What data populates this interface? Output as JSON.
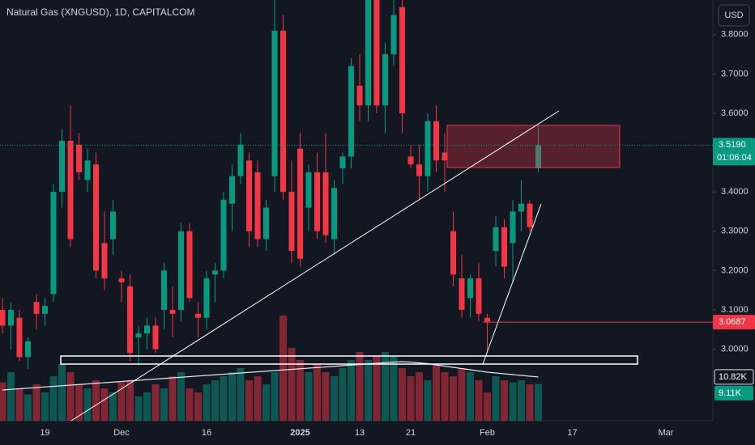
{
  "chart_data": {
    "type": "candlestick",
    "title": "Natural Gas (XNGUSD), 1D, CAPITALCOM",
    "currency": "USD",
    "categories": [
      null,
      null,
      null,
      null,
      null,
      "19",
      null,
      null,
      null,
      null,
      null,
      null,
      null,
      null,
      "Dec",
      null,
      null,
      null,
      null,
      null,
      null,
      null,
      null,
      null,
      "16",
      null,
      null,
      null,
      null,
      null,
      null,
      null,
      null,
      null,
      null,
      "2025",
      null,
      null,
      null,
      null,
      null,
      null,
      "13",
      null,
      null,
      null,
      null,
      null,
      "21",
      null,
      null,
      null,
      null,
      null,
      null,
      null,
      null,
      "Feb",
      null,
      null,
      null,
      null,
      null,
      null,
      null,
      null,
      null,
      "17",
      null,
      null,
      null,
      null,
      null,
      null,
      null,
      null,
      null,
      null,
      "Mar",
      null,
      null
    ],
    "open": [
      3.1,
      3.06,
      3.08,
      2.98,
      3.12,
      3.09,
      3.14,
      3.4,
      3.53,
      3.52,
      3.43,
      3.47,
      3.27,
      3.28,
      3.18,
      3.16,
      3.03,
      3.04,
      3.06,
      3.1,
      3.1,
      3.1,
      3.3,
      3.09,
      3.08,
      3.19,
      3.2,
      3.37,
      3.44,
      3.48,
      3.45,
      3.28,
      3.44,
      3.81,
      3.4,
      3.51,
      3.36,
      3.45,
      3.45,
      3.28,
      3.46,
      3.49,
      3.67,
      3.62,
      3.9,
      3.62,
      3.75,
      3.87,
      3.49,
      3.47,
      3.44,
      3.58,
      3.5,
      3.3,
      3.18,
      3.13,
      3.18,
      3.08,
      3.25,
      3.31,
      3.27,
      3.35,
      3.37,
      3.46,
      null,
      null,
      null,
      null,
      null,
      null,
      null,
      null,
      null,
      null,
      null,
      null,
      null,
      null,
      null,
      null,
      null
    ],
    "high": [
      3.13,
      3.12,
      3.1,
      3.03,
      3.14,
      3.13,
      3.42,
      3.56,
      3.62,
      3.55,
      3.51,
      3.5,
      3.35,
      3.38,
      3.2,
      3.19,
      3.06,
      3.08,
      3.08,
      3.22,
      3.16,
      3.32,
      3.32,
      3.12,
      3.2,
      3.22,
      3.4,
      3.47,
      3.55,
      3.5,
      3.48,
      3.38,
      3.9,
      3.85,
      3.48,
      3.55,
      3.47,
      3.5,
      3.55,
      3.43,
      3.5,
      3.74,
      3.75,
      3.92,
      3.93,
      3.78,
      3.92,
      3.9,
      3.52,
      3.52,
      3.6,
      3.62,
      3.55,
      3.35,
      3.24,
      3.19,
      3.22,
      3.09,
      3.34,
      3.33,
      3.38,
      3.43,
      3.38,
      3.57,
      null,
      null,
      null,
      null,
      null,
      null,
      null,
      null,
      null,
      null,
      null,
      null,
      null,
      null,
      null,
      null,
      null
    ],
    "low": [
      3.04,
      3.0,
      2.97,
      2.95,
      3.05,
      3.06,
      3.12,
      3.36,
      3.26,
      3.43,
      3.4,
      3.18,
      3.15,
      3.24,
      3.12,
      2.97,
      2.96,
      3.0,
      2.99,
      3.05,
      3.03,
      3.07,
      3.12,
      3.03,
      3.05,
      3.12,
      3.18,
      3.3,
      3.42,
      3.26,
      3.26,
      3.25,
      3.4,
      3.38,
      3.22,
      3.21,
      3.3,
      3.28,
      3.27,
      3.24,
      3.42,
      3.46,
      3.58,
      3.58,
      3.6,
      3.55,
      3.72,
      3.55,
      3.46,
      3.38,
      3.4,
      3.45,
      3.4,
      3.16,
      3.08,
      3.08,
      3.07,
      2.99,
      3.21,
      3.18,
      3.17,
      3.3,
      3.3,
      3.45,
      null,
      null,
      null,
      null,
      null,
      null,
      null,
      null,
      null,
      null,
      null,
      null,
      null,
      null,
      null,
      null,
      null
    ],
    "close": [
      3.06,
      3.1,
      2.98,
      3.02,
      3.09,
      3.11,
      3.4,
      3.53,
      3.28,
      3.45,
      3.48,
      3.2,
      3.18,
      3.35,
      3.17,
      2.99,
      3.04,
      3.06,
      3.0,
      3.2,
      3.09,
      3.3,
      3.13,
      3.08,
      3.18,
      3.2,
      3.38,
      3.44,
      3.52,
      3.3,
      3.28,
      3.36,
      3.81,
      3.4,
      3.25,
      3.23,
      3.45,
      3.3,
      3.29,
      3.41,
      3.49,
      3.72,
      3.62,
      3.9,
      3.62,
      3.75,
      3.85,
      3.6,
      3.47,
      3.44,
      3.58,
      3.48,
      3.48,
      3.19,
      3.1,
      3.18,
      3.09,
      3.07,
      3.31,
      3.21,
      3.35,
      3.37,
      3.31,
      3.519,
      null,
      null,
      null,
      null,
      null,
      null,
      null,
      null,
      null,
      null,
      null,
      null,
      null,
      null,
      null,
      null,
      null
    ],
    "volume": [
      9500,
      12000,
      8000,
      6500,
      9000,
      7000,
      11000,
      14000,
      12000,
      9000,
      8000,
      10000,
      8000,
      7000,
      9500,
      10000,
      6000,
      7000,
      9000,
      8000,
      11000,
      12000,
      8000,
      7000,
      9000,
      10000,
      11000,
      12000,
      13000,
      10000,
      11000,
      9000,
      12000,
      26000,
      18000,
      15000,
      12000,
      14000,
      12000,
      11000,
      13000,
      15000,
      17000,
      15000,
      16000,
      17000,
      16000,
      13000,
      11000,
      12000,
      10000,
      14000,
      12000,
      11000,
      13000,
      12000,
      10000,
      7000,
      11000,
      10000,
      9500,
      10000,
      9000,
      9110,
      null,
      null,
      null,
      null,
      null,
      null,
      null,
      null,
      null,
      null,
      null,
      null,
      null,
      null,
      null,
      null,
      null
    ],
    "volume_ma": [
      7600,
      7750,
      7900,
      8050,
      8200,
      8350,
      8500,
      8650,
      8800,
      8950,
      9100,
      9250,
      9400,
      9550,
      9700,
      9850,
      10000,
      10150,
      10300,
      10450,
      10600,
      10750,
      10900,
      11050,
      11200,
      11350,
      11500,
      11650,
      11800,
      11950,
      12100,
      12250,
      12400,
      12550,
      12700,
      12850,
      13000,
      13150,
      13300,
      13450,
      13600,
      13750,
      13900,
      14050,
      14200,
      14350,
      14500,
      14600,
      14500,
      14300,
      14100,
      13800,
      13500,
      13200,
      12900,
      12600,
      12300,
      12000,
      11800,
      11600,
      11400,
      11200,
      11000,
      10820,
      null,
      null,
      null,
      null,
      null,
      null,
      null,
      null,
      null,
      null,
      null,
      null,
      null,
      null,
      null,
      null,
      null
    ],
    "ylim": [
      2.818,
      3.888
    ],
    "yticks": [
      {
        "value": 3.0,
        "label": "3.0000"
      },
      {
        "value": 3.1,
        "label": "3.1000"
      },
      {
        "value": 3.2,
        "label": "3.2000"
      },
      {
        "value": 3.3,
        "label": "3.3000"
      },
      {
        "value": 3.4,
        "label": "3.4000"
      },
      {
        "value": 3.5,
        "label": "3.5000"
      },
      {
        "value": 3.6,
        "label": "3.6000"
      },
      {
        "value": 3.7,
        "label": "3.7000"
      },
      {
        "value": 3.8,
        "label": "3.8000"
      }
    ],
    "last_price": {
      "value": 3.519,
      "label": "3.5190"
    },
    "countdown": "01:06:04",
    "price_line": {
      "value": 3.0687,
      "label": "3.0687"
    },
    "volume_labels": [
      {
        "value": 10820,
        "label": "10.82K"
      },
      {
        "value": 9110,
        "label": "9.11K"
      }
    ],
    "up_color": "#089981",
    "down_color": "#f23645"
  }
}
